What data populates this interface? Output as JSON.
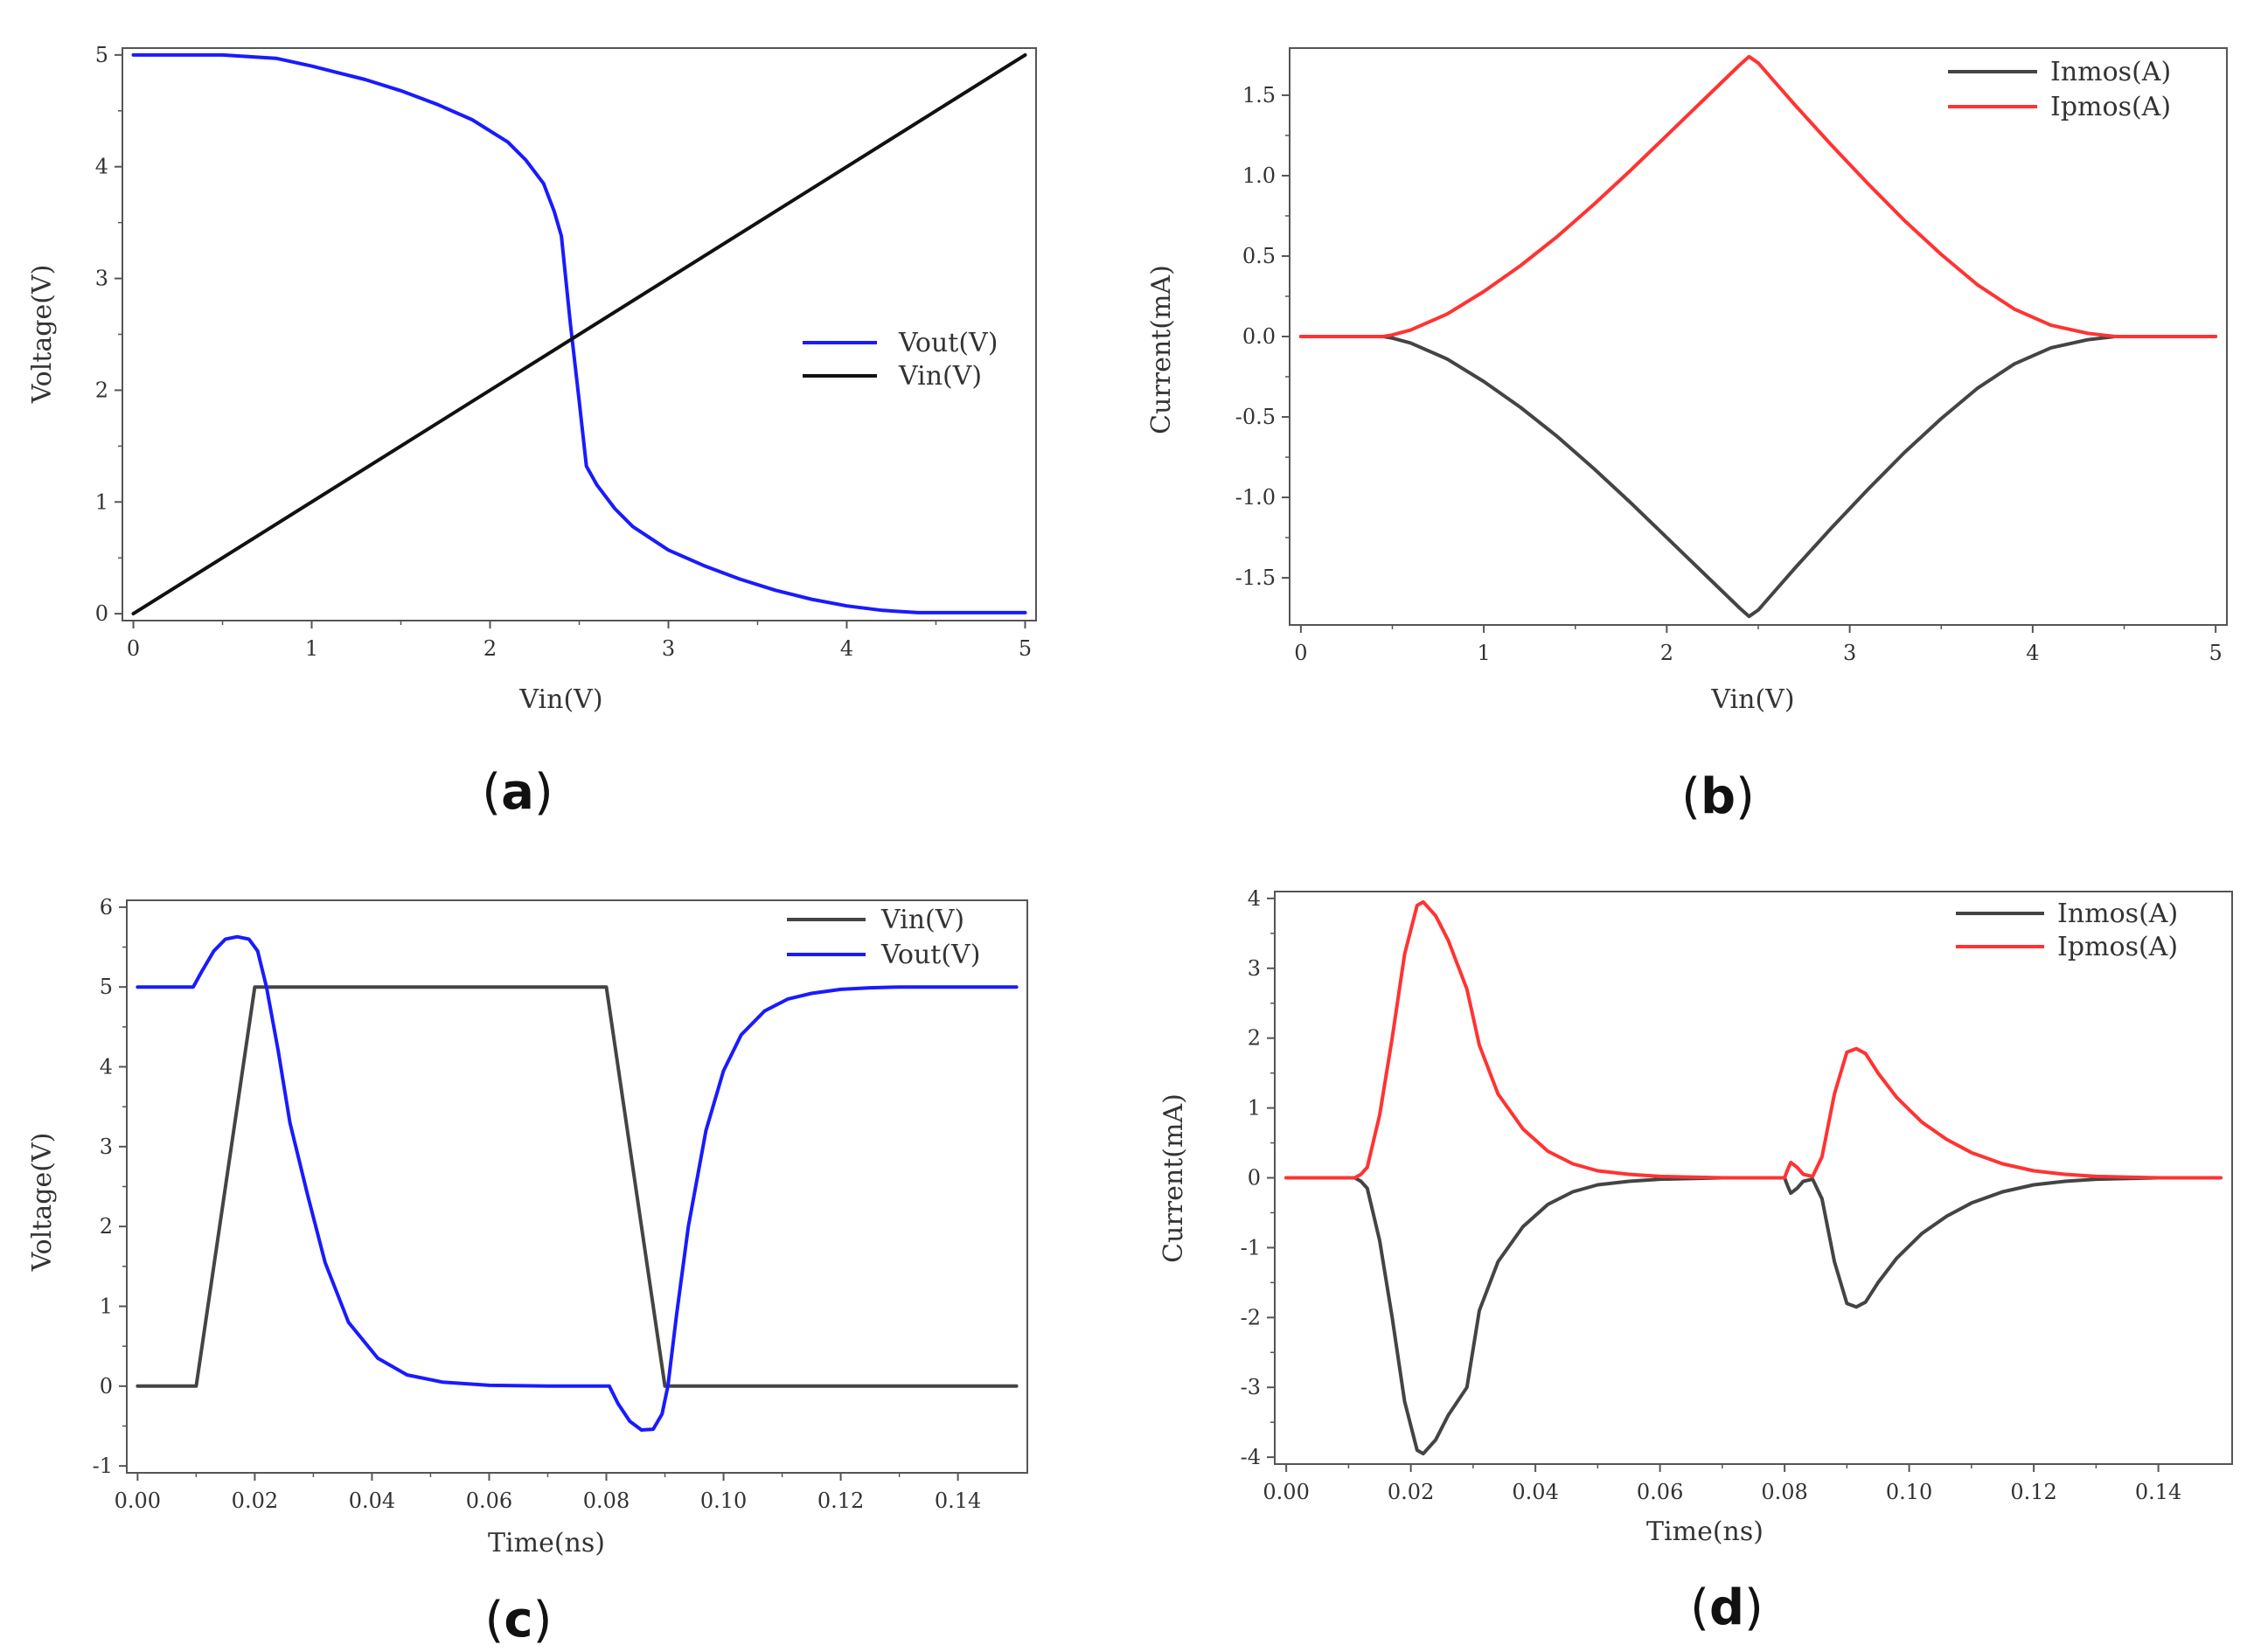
{
  "figure_title": "",
  "chart_data": [
    {
      "id": "a",
      "panel_label": "a",
      "type": "line",
      "title": "",
      "xlabel": "Vin(V)",
      "ylabel": "Voltage(V)",
      "xlim": [
        0,
        5
      ],
      "ylim": [
        0,
        5
      ],
      "xticks": [
        0,
        1,
        2,
        3,
        4,
        5
      ],
      "xtick_labels": [
        "0",
        "1",
        "2",
        "3",
        "4",
        "5"
      ],
      "yticks": [
        0,
        1,
        2,
        3,
        4,
        5
      ],
      "ytick_labels": [
        "0",
        "1",
        "2",
        "3",
        "4",
        "5"
      ],
      "legend_position": "center-right",
      "series": [
        {
          "name": "Vout(V)",
          "color": "#1a1aff",
          "x": [
            0,
            0.5,
            0.8,
            1.0,
            1.3,
            1.5,
            1.7,
            1.9,
            2.1,
            2.2,
            2.3,
            2.36,
            2.4,
            2.45,
            2.5,
            2.54,
            2.6,
            2.7,
            2.8,
            3.0,
            3.2,
            3.4,
            3.6,
            3.8,
            4.0,
            4.2,
            4.4,
            5.0
          ],
          "y": [
            5,
            5,
            4.97,
            4.9,
            4.78,
            4.68,
            4.56,
            4.42,
            4.22,
            4.06,
            3.85,
            3.6,
            3.38,
            2.6,
            1.9,
            1.32,
            1.15,
            0.94,
            0.78,
            0.57,
            0.43,
            0.31,
            0.21,
            0.13,
            0.07,
            0.03,
            0.01,
            0.01
          ]
        },
        {
          "name": "Vin(V)",
          "color": "#111111",
          "x": [
            0,
            5
          ],
          "y": [
            0,
            5
          ]
        }
      ]
    },
    {
      "id": "b",
      "panel_label": "b",
      "type": "line",
      "title": "",
      "xlabel": "Vin(V)",
      "ylabel": "Current(mA)",
      "xlim": [
        0,
        5
      ],
      "ylim": [
        -1.75,
        1.75
      ],
      "xticks": [
        0,
        1,
        2,
        3,
        4,
        5
      ],
      "xtick_labels": [
        "0",
        "1",
        "2",
        "3",
        "4",
        "5"
      ],
      "yticks": [
        -1.5,
        -1.0,
        -0.5,
        0.0,
        0.5,
        1.0,
        1.5
      ],
      "ytick_labels": [
        "-1.5",
        "-1.0",
        "-0.5",
        "0.0",
        "0.5",
        "1.0",
        "1.5"
      ],
      "legend_position": "top-right",
      "series": [
        {
          "name": "Inmos(A)",
          "color": "#444444",
          "x": [
            0,
            0.45,
            0.5,
            0.6,
            0.8,
            1.0,
            1.2,
            1.4,
            1.6,
            1.8,
            2.0,
            2.2,
            2.4,
            2.45,
            2.5,
            2.7,
            2.9,
            3.1,
            3.3,
            3.5,
            3.7,
            3.9,
            4.1,
            4.3,
            4.45,
            5.0
          ],
          "y": [
            0,
            0,
            -0.01,
            -0.04,
            -0.14,
            -0.28,
            -0.44,
            -0.62,
            -0.82,
            -1.03,
            -1.25,
            -1.47,
            -1.69,
            -1.74,
            -1.7,
            -1.44,
            -1.19,
            -0.95,
            -0.72,
            -0.51,
            -0.32,
            -0.17,
            -0.07,
            -0.02,
            0,
            0
          ]
        },
        {
          "name": "Ipmos(A)",
          "color": "#ff3333",
          "x": [
            0,
            0.45,
            0.5,
            0.6,
            0.8,
            1.0,
            1.2,
            1.4,
            1.6,
            1.8,
            2.0,
            2.2,
            2.4,
            2.45,
            2.5,
            2.7,
            2.9,
            3.1,
            3.3,
            3.5,
            3.7,
            3.9,
            4.1,
            4.3,
            4.45,
            5.0
          ],
          "y": [
            0,
            0,
            0.01,
            0.04,
            0.14,
            0.28,
            0.44,
            0.62,
            0.82,
            1.03,
            1.25,
            1.47,
            1.69,
            1.74,
            1.7,
            1.44,
            1.19,
            0.95,
            0.72,
            0.51,
            0.32,
            0.17,
            0.07,
            0.02,
            0,
            0
          ]
        }
      ]
    },
    {
      "id": "c",
      "panel_label": "c",
      "type": "line",
      "title": "",
      "xlabel": "Time(ns)",
      "ylabel": "Voltage(V)",
      "xlim": [
        0,
        0.15
      ],
      "ylim": [
        -1,
        6
      ],
      "xticks": [
        0,
        0.02,
        0.04,
        0.06,
        0.08,
        0.1,
        0.12,
        0.14
      ],
      "xtick_labels": [
        "0.00",
        "0.02",
        "0.04",
        "0.06",
        "0.08",
        "0.10",
        "0.12",
        "0.14"
      ],
      "yticks": [
        -1,
        0,
        1,
        2,
        3,
        4,
        5,
        6
      ],
      "ytick_labels": [
        "-1",
        "0",
        "1",
        "2",
        "3",
        "4",
        "5",
        "6"
      ],
      "legend_position": "top-right",
      "series": [
        {
          "name": "Vin(V)",
          "color": "#444444",
          "x": [
            0,
            0.01,
            0.02,
            0.08,
            0.09,
            0.15
          ],
          "y": [
            0,
            0,
            5,
            5,
            0,
            0
          ]
        },
        {
          "name": "Vout(V)",
          "color": "#1a1aff",
          "x": [
            0,
            0.0095,
            0.011,
            0.013,
            0.015,
            0.017,
            0.019,
            0.0205,
            0.022,
            0.024,
            0.026,
            0.029,
            0.032,
            0.036,
            0.041,
            0.046,
            0.052,
            0.06,
            0.07,
            0.08,
            0.0805,
            0.082,
            0.084,
            0.086,
            0.088,
            0.0895,
            0.0905,
            0.092,
            0.094,
            0.097,
            0.1,
            0.103,
            0.107,
            0.111,
            0.115,
            0.12,
            0.125,
            0.13,
            0.14,
            0.15
          ],
          "y": [
            5,
            5,
            5.2,
            5.45,
            5.6,
            5.63,
            5.6,
            5.45,
            5.0,
            4.2,
            3.3,
            2.4,
            1.55,
            0.8,
            0.35,
            0.14,
            0.05,
            0.01,
            0,
            0,
            0,
            -0.22,
            -0.44,
            -0.55,
            -0.54,
            -0.35,
            0,
            0.9,
            2.0,
            3.2,
            3.95,
            4.4,
            4.7,
            4.85,
            4.92,
            4.97,
            4.99,
            5.0,
            5.0,
            5.0
          ]
        }
      ]
    },
    {
      "id": "d",
      "panel_label": "d",
      "type": "line",
      "title": "",
      "xlabel": "Time(ns)",
      "ylabel": "Current(mA)",
      "xlim": [
        0,
        0.15
      ],
      "ylim": [
        -4,
        4
      ],
      "xticks": [
        0,
        0.02,
        0.04,
        0.06,
        0.08,
        0.1,
        0.12,
        0.14
      ],
      "xtick_labels": [
        "0.00",
        "0.02",
        "0.04",
        "0.06",
        "0.08",
        "0.10",
        "0.12",
        "0.14"
      ],
      "yticks": [
        -4,
        -3,
        -2,
        -1,
        0,
        1,
        2,
        3,
        4
      ],
      "ytick_labels": [
        "-4",
        "-3",
        "-2",
        "-1",
        "0",
        "1",
        "2",
        "3",
        "4"
      ],
      "legend_position": "top-right",
      "series": [
        {
          "name": "Inmos(A)",
          "color": "#444444",
          "x": [
            0,
            0.01,
            0.011,
            0.012,
            0.013,
            0.015,
            0.017,
            0.019,
            0.021,
            0.022,
            0.024,
            0.026,
            0.029,
            0.031,
            0.034,
            0.038,
            0.042,
            0.046,
            0.05,
            0.055,
            0.06,
            0.07,
            0.08,
            0.0805,
            0.081,
            0.082,
            0.083,
            0.0845,
            0.086,
            0.088,
            0.09,
            0.0915,
            0.093,
            0.095,
            0.098,
            0.102,
            0.106,
            0.11,
            0.115,
            0.12,
            0.125,
            0.13,
            0.14,
            0.15
          ],
          "y": [
            0,
            0,
            0,
            -0.05,
            -0.15,
            -0.9,
            -2.0,
            -3.2,
            -3.9,
            -3.95,
            -3.75,
            -3.4,
            -3.0,
            -1.9,
            -1.2,
            -0.7,
            -0.38,
            -0.2,
            -0.1,
            -0.05,
            -0.02,
            0,
            0,
            -0.12,
            -0.22,
            -0.15,
            -0.05,
            -0.02,
            -0.3,
            -1.2,
            -1.8,
            -1.85,
            -1.78,
            -1.5,
            -1.15,
            -0.8,
            -0.55,
            -0.36,
            -0.2,
            -0.1,
            -0.05,
            -0.02,
            0,
            0
          ]
        },
        {
          "name": "Ipmos(A)",
          "color": "#ff3333",
          "x": [
            0,
            0.01,
            0.011,
            0.012,
            0.013,
            0.015,
            0.017,
            0.019,
            0.021,
            0.022,
            0.024,
            0.026,
            0.029,
            0.031,
            0.034,
            0.038,
            0.042,
            0.046,
            0.05,
            0.055,
            0.06,
            0.07,
            0.08,
            0.0805,
            0.081,
            0.082,
            0.083,
            0.0845,
            0.086,
            0.088,
            0.09,
            0.0915,
            0.093,
            0.095,
            0.098,
            0.102,
            0.106,
            0.11,
            0.115,
            0.12,
            0.125,
            0.13,
            0.14,
            0.15
          ],
          "y": [
            0,
            0,
            0,
            0.05,
            0.15,
            0.9,
            2.0,
            3.2,
            3.9,
            3.95,
            3.75,
            3.4,
            2.7,
            1.9,
            1.2,
            0.7,
            0.38,
            0.2,
            0.1,
            0.05,
            0.02,
            0,
            0,
            0.12,
            0.22,
            0.15,
            0.05,
            0.02,
            0.3,
            1.2,
            1.8,
            1.85,
            1.78,
            1.5,
            1.15,
            0.8,
            0.55,
            0.36,
            0.2,
            0.1,
            0.05,
            0.02,
            0,
            0
          ]
        }
      ]
    }
  ]
}
